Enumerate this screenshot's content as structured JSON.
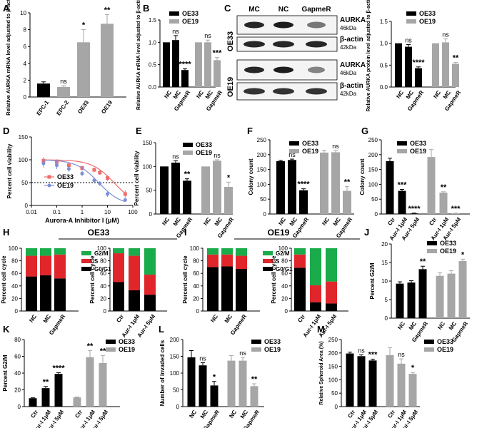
{
  "colors": {
    "black": "#000000",
    "gray": "#a6a6a6",
    "lightgray": "#c8c8c8",
    "red": "#e0262b",
    "green": "#1aab4b",
    "salmon": "#f26b6b",
    "blue": "#7b8fd8"
  },
  "panels": {
    "A": "A",
    "B": "B",
    "C": "C",
    "D": "D",
    "E": "E",
    "F": "F",
    "G": "G",
    "H": "H",
    "I": "I",
    "J": "J",
    "K": "K",
    "L": "L",
    "M": "M"
  },
  "blot": {
    "cols": [
      "MC",
      "NC",
      "GapmeR"
    ],
    "rows": [
      {
        "group": "OE33",
        "bands": [
          {
            "name": "AURKA",
            "size": "46kDa"
          },
          {
            "name": "β-actin",
            "size": "42kDa"
          }
        ]
      },
      {
        "group": "OE19",
        "bands": [
          {
            "name": "AURKA",
            "size": "46kDa"
          },
          {
            "name": "β-actin",
            "size": "42kDa"
          }
        ]
      }
    ]
  },
  "chart_data": [
    {
      "id": "A",
      "type": "bar",
      "ylabel": "Relative AURKA mRNA level adjusted to β-actin",
      "ylim": [
        0,
        10
      ],
      "yticks": [
        0,
        2,
        4,
        6,
        8,
        10
      ],
      "categories": [
        "EPC-1",
        "EPC-2",
        "OE33",
        "OE19"
      ],
      "values": [
        1.6,
        1.2,
        6.5,
        8.7
      ],
      "errors": [
        0.2,
        0.15,
        1.5,
        1.1
      ],
      "colors": [
        "black",
        "gray",
        "gray",
        "gray"
      ],
      "annotations": [
        "",
        "ns",
        "*",
        "**"
      ]
    },
    {
      "id": "B",
      "type": "bar",
      "ylabel": "Relative AURKA mRNA level adjusted to β-actin",
      "ylim": [
        0,
        1.5
      ],
      "yticks": [
        0,
        0.5,
        1.0,
        1.5
      ],
      "categories": [
        "NC",
        "MC",
        "GapmeR",
        "NC",
        "MC",
        "GapmeR"
      ],
      "values": [
        1.0,
        1.05,
        0.38,
        1.0,
        1.0,
        0.6
      ],
      "errors": [
        0,
        0.1,
        0.03,
        0,
        0.05,
        0.06
      ],
      "colors": [
        "black",
        "black",
        "black",
        "gray",
        "gray",
        "gray"
      ],
      "annotations": [
        "",
        "ns",
        "****",
        "",
        "ns",
        "***"
      ],
      "legend": [
        {
          "name": "OE33",
          "color": "black"
        },
        {
          "name": "OE19",
          "color": "gray"
        }
      ]
    },
    {
      "id": "C",
      "type": "bar",
      "ylabel": "Relative AURKA protein level adjusted to β-actin",
      "ylim": [
        0,
        1.5
      ],
      "yticks": [
        0,
        0.5,
        1.0,
        1.5
      ],
      "categories": [
        "NC",
        "MC",
        "GapmeR",
        "NC",
        "MC",
        "GapmeR"
      ],
      "values": [
        1.0,
        0.92,
        0.43,
        1.0,
        1.02,
        0.53
      ],
      "errors": [
        0,
        0.05,
        0.03,
        0,
        0.08,
        0.03
      ],
      "colors": [
        "black",
        "black",
        "black",
        "gray",
        "gray",
        "gray"
      ],
      "annotations": [
        "",
        "ns",
        "****",
        "",
        "ns",
        "**"
      ],
      "legend": [
        {
          "name": "OE33",
          "color": "black"
        },
        {
          "name": "OE19",
          "color": "gray"
        }
      ]
    },
    {
      "id": "D",
      "type": "line",
      "xlabel": "Aurora-A Inhibitor I (μM)",
      "ylabel": "Percent cell viability",
      "ylim": [
        0,
        150
      ],
      "yticks": [
        0,
        50,
        100,
        150
      ],
      "xticks": [
        "0.01",
        "0.1",
        "1",
        "10",
        "100"
      ],
      "reference": 50,
      "series": [
        {
          "name": "OE33",
          "color": "salmon",
          "x": [
            0.03,
            0.1,
            0.3,
            1,
            3,
            5,
            10,
            50
          ],
          "y": [
            98,
            95,
            88,
            82,
            78,
            72,
            60,
            25
          ],
          "err": [
            8,
            6,
            5,
            5,
            5,
            5,
            6,
            8
          ]
        },
        {
          "name": "OE19",
          "color": "blue",
          "x": [
            0.03,
            0.1,
            0.3,
            1,
            3,
            5,
            10,
            50
          ],
          "y": [
            92,
            88,
            80,
            70,
            55,
            48,
            25,
            12
          ],
          "err": [
            9,
            8,
            6,
            6,
            5,
            5,
            6,
            4
          ]
        }
      ]
    },
    {
      "id": "E",
      "type": "bar",
      "ylabel": "Percent cell viability",
      "ylim": [
        0,
        150
      ],
      "yticks": [
        0,
        50,
        100,
        150
      ],
      "categories": [
        "NC",
        "MC",
        "GapmeR",
        "NC",
        "MC",
        "GapmeR"
      ],
      "values": [
        100,
        108,
        70,
        100,
        112,
        57
      ],
      "errors": [
        0,
        4,
        4,
        0,
        2,
        10
      ],
      "colors": [
        "black",
        "black",
        "black",
        "gray",
        "gray",
        "gray"
      ],
      "annotations": [
        "",
        "ns",
        "**",
        "",
        "ns",
        "*"
      ],
      "legend": [
        {
          "name": "OE33",
          "color": "black"
        },
        {
          "name": "OE19",
          "color": "gray"
        }
      ]
    },
    {
      "id": "F",
      "type": "bar",
      "ylabel": "Colony count",
      "ylim": [
        0,
        250
      ],
      "yticks": [
        0,
        50,
        100,
        150,
        200,
        250
      ],
      "categories": [
        "NC",
        "MC",
        "GapmeR",
        "NC",
        "MC",
        "GapmeR"
      ],
      "values": [
        178,
        182,
        80,
        207,
        208,
        78
      ],
      "errors": [
        3,
        3,
        5,
        8,
        6,
        15
      ],
      "colors": [
        "black",
        "black",
        "black",
        "gray",
        "gray",
        "gray"
      ],
      "annotations": [
        "",
        "ns",
        "****",
        "",
        "ns",
        "**"
      ],
      "legend": [
        {
          "name": "OE33",
          "color": "black"
        },
        {
          "name": "OE19",
          "color": "gray"
        }
      ]
    },
    {
      "id": "G",
      "type": "bar",
      "ylabel": "Colony count",
      "ylim": [
        0,
        250
      ],
      "yticks": [
        0,
        50,
        100,
        150,
        200,
        250
      ],
      "categories": [
        "Ctr",
        "Aur-I 1μM",
        "Aur-I 5μM",
        "Ctr",
        "Aur-I 1μM",
        "Aur-I 5μM"
      ],
      "values": [
        178,
        78,
        2,
        192,
        72,
        2
      ],
      "errors": [
        10,
        5,
        1,
        25,
        3,
        1
      ],
      "colors": [
        "black",
        "black",
        "black",
        "gray",
        "gray",
        "gray"
      ],
      "annotations": [
        "",
        "***",
        "****",
        "",
        "**",
        "***"
      ],
      "legend": [
        {
          "name": "OE33",
          "color": "black"
        },
        {
          "name": "OE19",
          "color": "gray"
        }
      ]
    },
    {
      "id": "H",
      "type": "stacked-bar",
      "title": "OE33",
      "ylabel": "Percent cell cycle",
      "ylim": [
        0,
        100
      ],
      "yticks": [
        0,
        20,
        40,
        60,
        80,
        100
      ],
      "groups": [
        {
          "categories": [
            "NC",
            "MC",
            "GapmeR"
          ],
          "G0G1": [
            55,
            57,
            52
          ],
          "S": [
            33,
            31,
            38
          ],
          "G2M": [
            12,
            12,
            10
          ]
        },
        {
          "categories": [
            "Ctr",
            "Aur-I 1μM",
            "Aur-I 5μM"
          ],
          "G0G1": [
            46,
            33,
            26
          ],
          "S": [
            46,
            55,
            32
          ],
          "G2M": [
            8,
            12,
            42
          ]
        }
      ],
      "legend": [
        {
          "name": "G2/M",
          "color": "green"
        },
        {
          "name": "S",
          "color": "red"
        },
        {
          "name": "G0/G1",
          "color": "black"
        }
      ]
    },
    {
      "id": "I",
      "type": "stacked-bar",
      "title": "OE19",
      "ylabel": "Percent cell cycle",
      "ylim": [
        0,
        100
      ],
      "yticks": [
        0,
        20,
        40,
        60,
        80,
        100
      ],
      "groups": [
        {
          "categories": [
            "NC",
            "MC",
            "GapmeR"
          ],
          "G0G1": [
            70,
            71,
            67
          ],
          "S": [
            20,
            19,
            21
          ],
          "G2M": [
            10,
            10,
            12
          ]
        },
        {
          "categories": [
            "Ctr",
            "Aur-I 1μM",
            "Aur-I 5μM"
          ],
          "G0G1": [
            69,
            14,
            12
          ],
          "S": [
            21,
            27,
            35
          ],
          "G2M": [
            10,
            59,
            53
          ]
        }
      ],
      "legend": [
        {
          "name": "G2/M",
          "color": "green"
        },
        {
          "name": "S",
          "color": "red"
        },
        {
          "name": "G0/G1",
          "color": "black"
        }
      ]
    },
    {
      "id": "J",
      "type": "bar",
      "ylabel": "Percent G2/M",
      "ylim": [
        0,
        20
      ],
      "yticks": [
        0,
        5,
        10,
        15,
        20
      ],
      "categories": [
        "NC",
        "MC",
        "GapmeR",
        "NC",
        "MC",
        "GapmeR"
      ],
      "values": [
        9.3,
        9.6,
        13.2,
        11.4,
        12.0,
        15.4
      ],
      "errors": [
        0.5,
        0.5,
        0.8,
        0.9,
        0.8,
        0.5
      ],
      "colors": [
        "black",
        "black",
        "black",
        "gray",
        "gray",
        "gray"
      ],
      "annotations": [
        "",
        "",
        "**",
        "",
        "",
        "*"
      ],
      "legend": [
        {
          "name": "OE33",
          "color": "black"
        },
        {
          "name": "OE19",
          "color": "gray"
        }
      ]
    },
    {
      "id": "K",
      "type": "bar",
      "ylabel": "Percent G2/M",
      "ylim": [
        0,
        80
      ],
      "yticks": [
        0,
        20,
        40,
        60,
        80
      ],
      "categories": [
        "Ctr",
        "Aur-I 1μM",
        "Aur-I 5μM",
        "Ctr",
        "Aur-I 1μM",
        "Aur-I 5μM"
      ],
      "values": [
        10,
        22,
        39,
        11,
        59,
        52
      ],
      "errors": [
        0.5,
        2,
        1.5,
        0.5,
        8,
        9
      ],
      "colors": [
        "black",
        "black",
        "black",
        "gray",
        "gray",
        "gray"
      ],
      "annotations": [
        "",
        "**",
        "****",
        "",
        "**",
        "**"
      ],
      "legend": [
        {
          "name": "OE33",
          "color": "black"
        },
        {
          "name": "OE19",
          "color": "gray"
        }
      ]
    },
    {
      "id": "L",
      "type": "bar",
      "ylabel": "Number of invaded cells",
      "ylim": [
        0,
        200
      ],
      "yticks": [
        0,
        50,
        100,
        150,
        200
      ],
      "categories": [
        "NC",
        "MC",
        "GapmeR",
        "NC",
        "MC",
        "GapmeR"
      ],
      "values": [
        147,
        123,
        63,
        137,
        137,
        61
      ],
      "errors": [
        20,
        8,
        12,
        15,
        10,
        7
      ],
      "colors": [
        "black",
        "black",
        "black",
        "gray",
        "gray",
        "gray"
      ],
      "annotations": [
        "",
        "ns",
        "*",
        "",
        "ns",
        "**"
      ],
      "legend": [
        {
          "name": "OE33",
          "color": "black"
        },
        {
          "name": "OE19",
          "color": "gray"
        }
      ]
    },
    {
      "id": "M",
      "type": "bar",
      "ylabel": "Relative Spheroid Area (%)",
      "ylim": [
        0,
        250
      ],
      "yticks": [
        0,
        50,
        100,
        150,
        200,
        250
      ],
      "categories": [
        "Ctr",
        "Aur-I 1μM",
        "Aur-I 5μM",
        "Ctr",
        "Aur-I 1μM",
        "Aur-I 5μM"
      ],
      "values": [
        198,
        188,
        172,
        192,
        160,
        122
      ],
      "errors": [
        5,
        5,
        5,
        28,
        18,
        5
      ],
      "colors": [
        "black",
        "black",
        "black",
        "gray",
        "gray",
        "gray"
      ],
      "annotations": [
        "",
        "ns",
        "***",
        "",
        "ns",
        "*"
      ],
      "legend": [
        {
          "name": "OE33",
          "color": "black"
        },
        {
          "name": "OE19",
          "color": "gray"
        }
      ]
    }
  ]
}
